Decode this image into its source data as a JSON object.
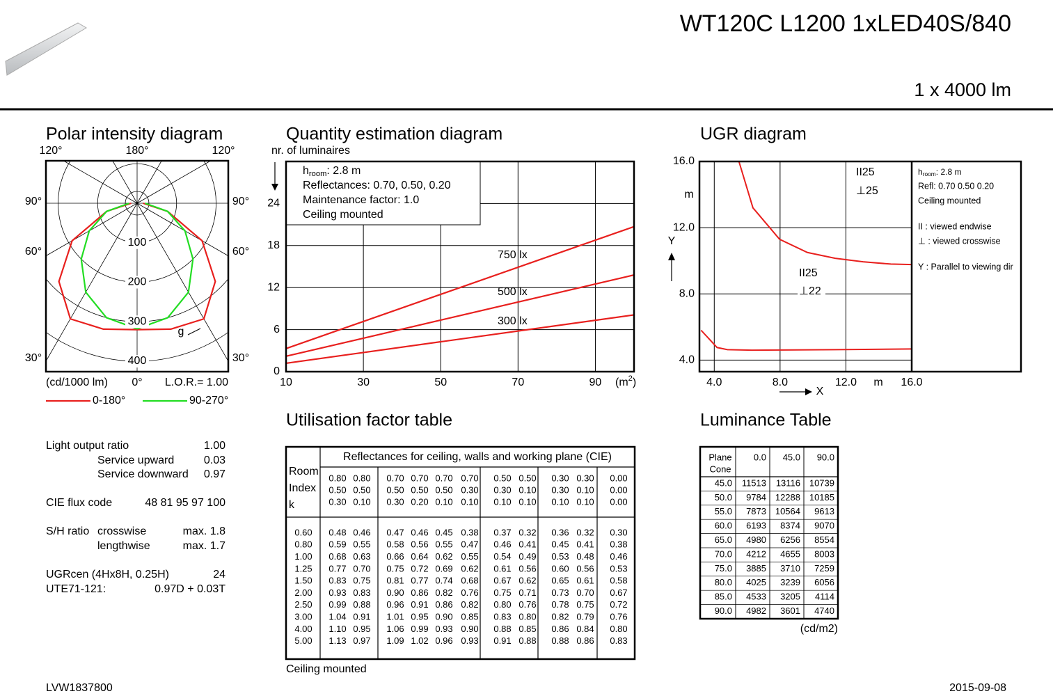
{
  "header": {
    "title": "WT120C L1200 1xLED40S/840",
    "flux": "1 x 4000 lm"
  },
  "polar": {
    "title": "Polar intensity diagram",
    "angle_labels": [
      "120°",
      "180°",
      "120°",
      "90°",
      "90°",
      "60°",
      "60°",
      "30°",
      "30°",
      "0°"
    ],
    "rlim": [
      0,
      400
    ],
    "rticks": [
      100,
      200,
      300,
      400
    ],
    "angles": [
      0,
      15,
      30,
      45,
      60,
      75,
      90
    ],
    "series": [
      {
        "name": "0-180°",
        "color": "#e8201e",
        "values": [
          320,
          330,
          338,
          280,
          190,
          80,
          15
        ]
      },
      {
        "name": "90-270°",
        "color": "#22dd22",
        "values": [
          318,
          300,
          260,
          200,
          140,
          80,
          20
        ]
      }
    ],
    "marker": "g",
    "unit": "(cd/1000 lm)",
    "lor": "L.O.R.= 1.00"
  },
  "quantity": {
    "title": "Quantity estimation diagram",
    "y_label": "nr. of luminaires",
    "info": {
      "h": [
        "h",
        "room",
        ": 2.8 m"
      ],
      "lines": [
        "Reflectances: 0.70, 0.50, 0.20",
        "Maintenance factor: 1.0",
        "Ceiling mounted"
      ]
    },
    "xlim": [
      10,
      100
    ],
    "ylim": [
      0,
      30
    ],
    "xticks": [
      10,
      30,
      50,
      70,
      90
    ],
    "yticks": [
      0,
      6,
      12,
      18,
      24
    ],
    "x_unit": [
      "(m",
      "2",
      ")"
    ],
    "series": [
      {
        "name": "750 lx",
        "color": "#e8201e",
        "x": [
          10,
          100
        ],
        "values": [
          3.3,
          20.7
        ]
      },
      {
        "name": "500 lx",
        "color": "#e8201e",
        "x": [
          10,
          100
        ],
        "values": [
          2.2,
          13.8
        ]
      },
      {
        "name": "300 lx",
        "color": "#e8201e",
        "x": [
          10,
          100
        ],
        "values": [
          1.2,
          8.1
        ]
      }
    ]
  },
  "ugr": {
    "title": "UGR diagram",
    "xlim": [
      3.1,
      16
    ],
    "ylim": [
      3.3,
      16
    ],
    "xticks": [
      {
        "value": 4,
        "label": "4.0"
      },
      {
        "value": 8,
        "label": "8.0"
      },
      {
        "value": 12,
        "label": "12.0"
      },
      {
        "value": 16,
        "label": "16.0"
      }
    ],
    "yticks": [
      {
        "value": 4,
        "label": "4.0"
      },
      {
        "value": 8,
        "label": "8.0"
      },
      {
        "value": 12,
        "label": "12.0"
      },
      {
        "value": 16,
        "label": "16.0"
      }
    ],
    "x_unit": "m",
    "y_unit": "m",
    "x_label": "X",
    "y_label": "Y",
    "annotations": [
      "II25",
      "⊥25",
      "II25",
      "⊥22"
    ],
    "series": [
      {
        "color": "#e8201e",
        "x": [
          5.5,
          6.35,
          7.97,
          9.66,
          11.35,
          13.04,
          14.73,
          16
        ],
        "values": [
          16,
          13.2,
          11.3,
          10.5,
          10.15,
          9.94,
          9.8,
          9.77
        ]
      },
      {
        "color": "#e8201e",
        "x": [
          3.2,
          4.17,
          4.8,
          6.28,
          11.35,
          16
        ],
        "values": [
          5.8,
          4.76,
          4.63,
          4.6,
          4.63,
          4.67
        ]
      }
    ],
    "legend": {
      "h": [
        "h",
        "room",
        ": 2.8 m"
      ],
      "lines": [
        "Refl: 0.70 0.50 0.20",
        "Ceiling mounted",
        "II : viewed endwise",
        "⊥ : viewed crosswise",
        "Y  : Parallel to viewing dir"
      ]
    }
  },
  "utilisation": {
    "title": "Utilisation factor table",
    "header": "Reflectances for ceiling, walls and working plane (CIE)",
    "row_head": [
      "Room",
      "Index",
      "k"
    ],
    "reflectances": [
      [
        "0.80",
        "0.80",
        "0.70",
        "0.70",
        "0.70",
        "0.70",
        "0.50",
        "0.50",
        "0.30",
        "0.30",
        "0.00"
      ],
      [
        "0.50",
        "0.50",
        "0.50",
        "0.50",
        "0.50",
        "0.30",
        "0.30",
        "0.10",
        "0.30",
        "0.10",
        "0.00"
      ],
      [
        "0.30",
        "0.10",
        "0.30",
        "0.20",
        "0.10",
        "0.10",
        "0.10",
        "0.10",
        "0.10",
        "0.10",
        "0.00"
      ]
    ],
    "rows": [
      [
        "0.60",
        "0.48",
        "0.46",
        "0.47",
        "0.46",
        "0.45",
        "0.38",
        "0.37",
        "0.32",
        "0.36",
        "0.32",
        "0.30"
      ],
      [
        "0.80",
        "0.59",
        "0.55",
        "0.58",
        "0.56",
        "0.55",
        "0.47",
        "0.46",
        "0.41",
        "0.45",
        "0.41",
        "0.38"
      ],
      [
        "1.00",
        "0.68",
        "0.63",
        "0.66",
        "0.64",
        "0.62",
        "0.55",
        "0.54",
        "0.49",
        "0.53",
        "0.48",
        "0.46"
      ],
      [
        "1.25",
        "0.77",
        "0.70",
        "0.75",
        "0.72",
        "0.69",
        "0.62",
        "0.61",
        "0.56",
        "0.60",
        "0.56",
        "0.53"
      ],
      [
        "1.50",
        "0.83",
        "0.75",
        "0.81",
        "0.77",
        "0.74",
        "0.68",
        "0.67",
        "0.62",
        "0.65",
        "0.61",
        "0.58"
      ],
      [
        "2.00",
        "0.93",
        "0.83",
        "0.90",
        "0.86",
        "0.82",
        "0.76",
        "0.75",
        "0.71",
        "0.73",
        "0.70",
        "0.67"
      ],
      [
        "2.50",
        "0.99",
        "0.88",
        "0.96",
        "0.91",
        "0.86",
        "0.82",
        "0.80",
        "0.76",
        "0.78",
        "0.75",
        "0.72"
      ],
      [
        "3.00",
        "1.04",
        "0.91",
        "1.01",
        "0.95",
        "0.90",
        "0.85",
        "0.83",
        "0.80",
        "0.82",
        "0.79",
        "0.76"
      ],
      [
        "4.00",
        "1.10",
        "0.95",
        "1.06",
        "0.99",
        "0.93",
        "0.90",
        "0.88",
        "0.85",
        "0.86",
        "0.84",
        "0.80"
      ],
      [
        "5.00",
        "1.13",
        "0.97",
        "1.09",
        "1.02",
        "0.96",
        "0.93",
        "0.91",
        "0.88",
        "0.88",
        "0.86",
        "0.83"
      ]
    ],
    "footer": "Ceiling mounted"
  },
  "luminance": {
    "title": "Luminance Table",
    "corner": [
      "Plane",
      "Cone"
    ],
    "columns": [
      "0.0",
      "45.0",
      "90.0"
    ],
    "rows": [
      [
        "45.0",
        "11513",
        "13116",
        "10739"
      ],
      [
        "50.0",
        "9784",
        "12288",
        "10185"
      ],
      [
        "55.0",
        "7873",
        "10564",
        "9613"
      ],
      [
        "60.0",
        "6193",
        "8374",
        "9070"
      ],
      [
        "65.0",
        "4980",
        "6256",
        "8554"
      ],
      [
        "70.0",
        "4212",
        "4655",
        "8003"
      ],
      [
        "75.0",
        "3885",
        "3710",
        "7259"
      ],
      [
        "80.0",
        "4025",
        "3239",
        "6056"
      ],
      [
        "85.0",
        "4533",
        "3205",
        "4114"
      ],
      [
        "90.0",
        "4982",
        "3601",
        "4740"
      ]
    ],
    "unit": "(cd/m2)"
  },
  "specs": {
    "rows": [
      [
        "Light output ratio",
        "1.00"
      ],
      [
        "Service upward",
        "0.03"
      ],
      [
        "Service downward",
        "0.97"
      ],
      [
        "CIE flux code",
        "48 81 95 97 100"
      ],
      [
        "S/H ratio",
        "crosswise",
        "max. 1.8"
      ],
      [
        "lengthwise",
        "max. 1.7"
      ],
      [
        "UGRcen (4Hx8H, 0.25H)",
        "24"
      ],
      [
        "UTE71-121:",
        "0.97D + 0.03T"
      ]
    ]
  },
  "footer": {
    "code": "LVW1837800",
    "date": "2015-09-08"
  }
}
